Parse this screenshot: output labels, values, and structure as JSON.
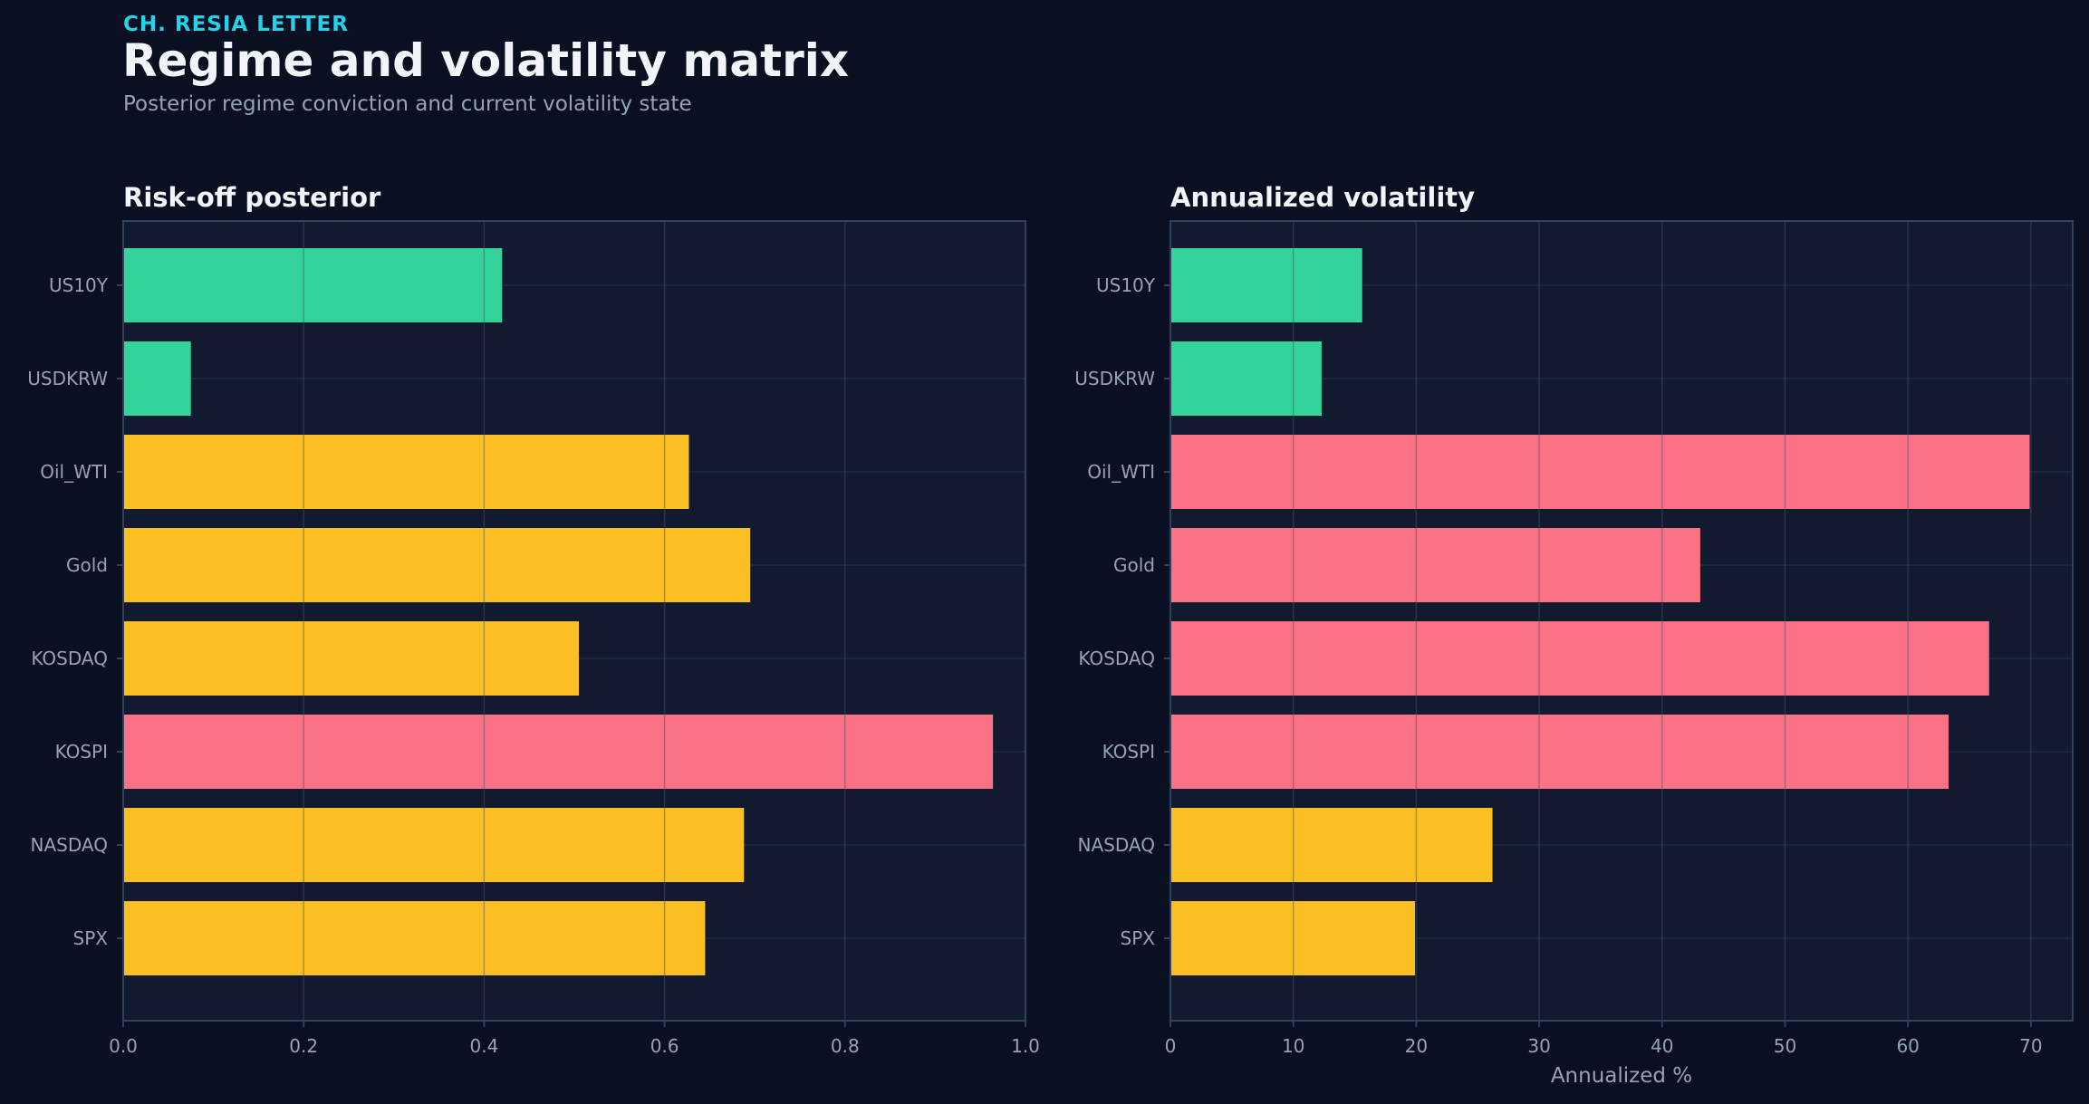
{
  "header": {
    "kicker": "CH. RESIA LETTER",
    "title": "Regime and volatility matrix",
    "subtitle": "Posterior regime conviction and current volatility state"
  },
  "colors": {
    "background": "#0a1022",
    "panel": "#111a2e",
    "grid": "#1e2a42",
    "spine": "#33415c",
    "green": "#34d399",
    "yellow": "#fbbf24",
    "red": "#fb7185"
  },
  "chart_data": [
    {
      "type": "bar",
      "orientation": "horizontal",
      "title": "Risk-off posterior",
      "xlabel": "",
      "ylabel": "",
      "categories": [
        "US10Y",
        "USDKRW",
        "Oil_WTI",
        "Gold",
        "KOSDAQ",
        "KOSPI",
        "NASDAQ",
        "SPX"
      ],
      "values": [
        0.42,
        0.075,
        0.627,
        0.695,
        0.505,
        0.964,
        0.688,
        0.645
      ],
      "bar_colors": [
        "green",
        "green",
        "yellow",
        "yellow",
        "yellow",
        "red",
        "yellow",
        "yellow"
      ],
      "xlim": [
        0,
        1.0
      ],
      "xticks": [
        0.0,
        0.2,
        0.4,
        0.6,
        0.8,
        1.0
      ],
      "xtick_labels": [
        "0.0",
        "0.2",
        "0.4",
        "0.6",
        "0.8",
        "1.0"
      ],
      "grid": true
    },
    {
      "type": "bar",
      "orientation": "horizontal",
      "title": "Annualized volatility",
      "xlabel": "Annualized %",
      "ylabel": "",
      "categories": [
        "US10Y",
        "USDKRW",
        "Oil_WTI",
        "Gold",
        "KOSDAQ",
        "KOSPI",
        "NASDAQ",
        "SPX"
      ],
      "values": [
        15.6,
        12.3,
        69.9,
        43.1,
        66.6,
        63.3,
        26.2,
        19.9
      ],
      "bar_colors": [
        "green",
        "green",
        "red",
        "red",
        "red",
        "red",
        "yellow",
        "yellow"
      ],
      "xlim": [
        0,
        73.4
      ],
      "xticks": [
        0,
        10,
        20,
        30,
        40,
        50,
        60,
        70
      ],
      "xtick_labels": [
        "0",
        "10",
        "20",
        "30",
        "40",
        "50",
        "60",
        "70"
      ],
      "grid": true
    }
  ]
}
